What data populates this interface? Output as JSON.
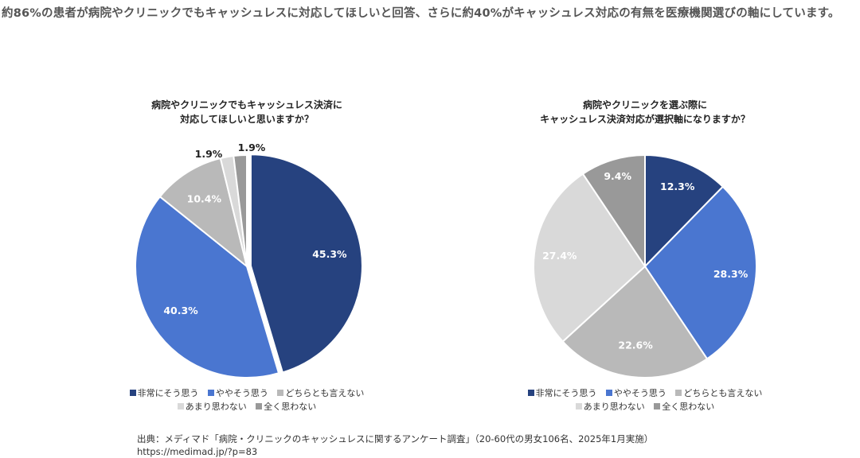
{
  "headline": "約86%の患者が病院やクリニックでもキャッシュレスに対応してほしいと回答、さらに約40%がキャッシュレス対応の有無を医療機関選びの軸にしています。",
  "legend_labels": [
    "非常にそう思う",
    "ややそう思う",
    "どちらとも言えない",
    "あまり思わない",
    "全く思わない"
  ],
  "colors": [
    "#26427f",
    "#4a76d0",
    "#b9b9b9",
    "#d9d9d9",
    "#999999"
  ],
  "chart_data": [
    {
      "type": "pie",
      "title_lines": [
        "病院やクリニックでもキャッシュレス決済に",
        "対応してほしいと思いますか？"
      ],
      "categories": [
        "非常にそう思う",
        "ややそう思う",
        "どちらとも言えない",
        "あまり思わない",
        "全く思わない"
      ],
      "values": [
        45.3,
        40.3,
        10.4,
        1.9,
        1.9
      ],
      "labels": [
        "45.3%",
        "40.3%",
        "10.4%",
        "1.9%",
        "1.9%"
      ],
      "legend_position": "bottom"
    },
    {
      "type": "pie",
      "title_lines": [
        "病院やクリニックを選ぶ際に",
        "キャッシュレス決済対応が選択軸になりますか？"
      ],
      "categories": [
        "非常にそう思う",
        "ややそう思う",
        "どちらとも言えない",
        "あまり思わない",
        "全く思わない"
      ],
      "values": [
        12.3,
        28.3,
        22.6,
        27.4,
        9.4
      ],
      "labels": [
        "12.3%",
        "28.3%",
        "22.6%",
        "27.4%",
        "9.4%"
      ],
      "legend_position": "bottom"
    }
  ],
  "source_lines": [
    "出典：メディマド「病院・クリニックのキャッシュレスに関するアンケート調査」（20-60代の男女106名、2025年1月実施）",
    "https://medimad.jp/?p=83"
  ]
}
